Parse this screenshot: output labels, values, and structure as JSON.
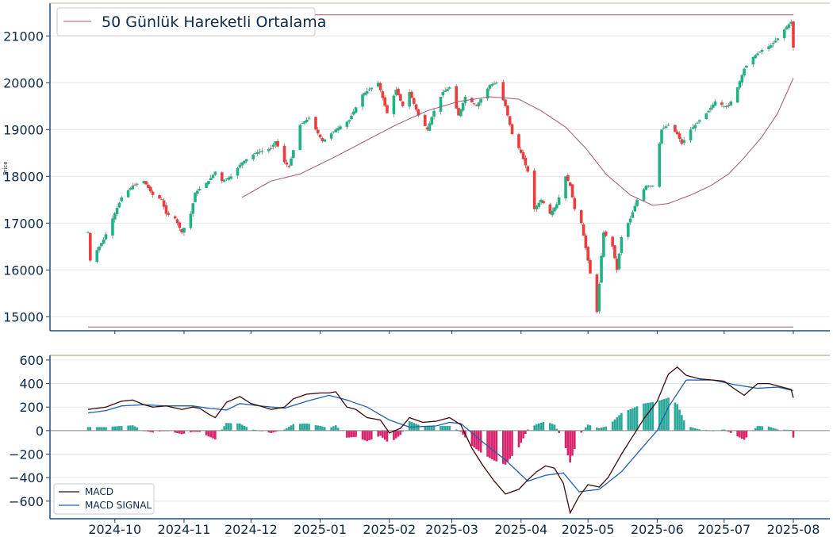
{
  "chart_data": [
    {
      "type": "candlestick",
      "ylabel": "Price",
      "ylim": [
        14700,
        21700
      ],
      "yticks": [
        15000,
        16000,
        17000,
        18000,
        19000,
        20000,
        21000
      ],
      "grid": true,
      "legend": {
        "placement": "top-left",
        "entries": [
          "50 Günlük Hareketli Ortalama"
        ]
      },
      "colors": {
        "up": "#1db385",
        "down": "#f03b3b",
        "ma": "#a3566f",
        "hline_top": "#a3566f",
        "hline_bottom": "#a3566f",
        "axis": "#1f4f8a",
        "grid": "#e6e6e6"
      },
      "horizontal_lines": [
        21450,
        14780
      ],
      "series": [
        {
          "name": "50 Günlük Hareketli Ortalama",
          "kind": "line",
          "key": "ma50"
        }
      ]
    },
    {
      "type": "macd",
      "ylim": [
        -750,
        640
      ],
      "yticks": [
        -600,
        -400,
        -200,
        0,
        200,
        400,
        600
      ],
      "grid": true,
      "legend": {
        "placement": "bottom-left",
        "entries": [
          "MACD",
          "MACD SIGNAL"
        ]
      },
      "colors": {
        "macd": "#3a0a0a",
        "signal": "#1f5fb0",
        "hist_pos": "#2aa89a",
        "hist_neg": "#d8226b",
        "zero": "#8a8a8a",
        "top_line": "#c9b99b"
      },
      "series": [
        {
          "name": "MACD",
          "kind": "line",
          "key": "macd"
        },
        {
          "name": "MACD SIGNAL",
          "kind": "line",
          "key": "signal"
        }
      ]
    }
  ],
  "x_axis": {
    "tick_labels": [
      "2024-10",
      "2024-11",
      "2024-12",
      "2025-01",
      "2025-02",
      "2025-03",
      "2025-04",
      "2025-05",
      "2025-06",
      "2025-07",
      "2025-08"
    ],
    "tick_dates": [
      "2024-10-01",
      "2024-11-01",
      "2024-12-01",
      "2025-01-01",
      "2025-02-01",
      "2025-03-01",
      "2025-04-01",
      "2025-05-01",
      "2025-06-01",
      "2025-07-01",
      "2025-08-01"
    ],
    "start": "2024-09-19",
    "end": "2025-08-01"
  },
  "anchors": {
    "close": [
      [
        "2024-09-19",
        16800
      ],
      [
        "2024-09-20",
        16200
      ],
      [
        "2024-09-24",
        16500
      ],
      [
        "2024-09-26",
        16650
      ],
      [
        "2024-09-30",
        17100
      ],
      [
        "2024-10-04",
        17550
      ],
      [
        "2024-10-09",
        17800
      ],
      [
        "2024-10-14",
        17900
      ],
      [
        "2024-10-18",
        17600
      ],
      [
        "2024-10-22",
        17500
      ],
      [
        "2024-10-24",
        17200
      ],
      [
        "2024-10-28",
        17100
      ],
      [
        "2024-10-31",
        16800
      ],
      [
        "2024-11-04",
        17200
      ],
      [
        "2024-11-06",
        17650
      ],
      [
        "2024-11-12",
        17900
      ],
      [
        "2024-11-15",
        18100
      ],
      [
        "2024-11-18",
        17900
      ],
      [
        "2024-11-22",
        18000
      ],
      [
        "2024-11-27",
        18300
      ],
      [
        "2024-12-03",
        18500
      ],
      [
        "2024-12-10",
        18600
      ],
      [
        "2024-12-12",
        18750
      ],
      [
        "2024-12-16",
        18300
      ],
      [
        "2024-12-18",
        18200
      ],
      [
        "2024-12-23",
        19100
      ],
      [
        "2024-12-27",
        19250
      ],
      [
        "2025-01-02",
        18750
      ],
      [
        "2025-01-08",
        19000
      ],
      [
        "2025-01-14",
        19200
      ],
      [
        "2025-01-20",
        19750
      ],
      [
        "2025-01-27",
        20000
      ],
      [
        "2025-01-31",
        19350
      ],
      [
        "2025-02-04",
        19850
      ],
      [
        "2025-02-07",
        19500
      ],
      [
        "2025-02-10",
        19800
      ],
      [
        "2025-02-14",
        19300
      ],
      [
        "2025-02-18",
        19000
      ],
      [
        "2025-02-21",
        19400
      ],
      [
        "2025-02-25",
        19800
      ],
      [
        "2025-02-28",
        19900
      ],
      [
        "2025-03-04",
        19300
      ],
      [
        "2025-03-07",
        19700
      ],
      [
        "2025-03-12",
        19500
      ],
      [
        "2025-03-14",
        19650
      ],
      [
        "2025-03-18",
        19950
      ],
      [
        "2025-03-21",
        20000
      ],
      [
        "2025-03-25",
        19500
      ],
      [
        "2025-03-28",
        18900
      ],
      [
        "2025-04-01",
        18500
      ],
      [
        "2025-04-04",
        18100
      ],
      [
        "2025-04-07",
        17300
      ],
      [
        "2025-04-10",
        17500
      ],
      [
        "2025-04-14",
        17200
      ],
      [
        "2025-04-17",
        17400
      ],
      [
        "2025-04-21",
        18000
      ],
      [
        "2025-04-23",
        17800
      ],
      [
        "2025-04-25",
        17300
      ],
      [
        "2025-04-28",
        17000
      ],
      [
        "2025-05-01",
        16200
      ],
      [
        "2025-05-05",
        15100
      ],
      [
        "2025-05-07",
        16300
      ],
      [
        "2025-05-08",
        16800
      ],
      [
        "2025-05-12",
        16500
      ],
      [
        "2025-05-14",
        16000
      ],
      [
        "2025-05-16",
        16700
      ],
      [
        "2025-05-20",
        17100
      ],
      [
        "2025-05-23",
        17500
      ],
      [
        "2025-05-27",
        17800
      ],
      [
        "2025-05-30",
        17800
      ],
      [
        "2025-06-03",
        19000
      ],
      [
        "2025-06-06",
        19100
      ],
      [
        "2025-06-10",
        18900
      ],
      [
        "2025-06-12",
        18700
      ],
      [
        "2025-06-16",
        19000
      ],
      [
        "2025-06-20",
        19200
      ],
      [
        "2025-06-24",
        19400
      ],
      [
        "2025-06-27",
        19600
      ],
      [
        "2025-07-01",
        19500
      ],
      [
        "2025-07-03",
        19500
      ],
      [
        "2025-07-07",
        19900
      ],
      [
        "2025-07-10",
        20300
      ],
      [
        "2025-07-14",
        20550
      ],
      [
        "2025-07-18",
        20700
      ],
      [
        "2025-07-22",
        20800
      ],
      [
        "2025-07-25",
        20950
      ],
      [
        "2025-07-29",
        21200
      ],
      [
        "2025-07-31",
        21300
      ],
      [
        "2025-08-01",
        20750
      ]
    ],
    "ma50": [
      [
        "2024-11-27",
        17550
      ],
      [
        "2024-12-10",
        17900
      ],
      [
        "2024-12-23",
        18050
      ],
      [
        "2025-01-07",
        18400
      ],
      [
        "2025-01-21",
        18750
      ],
      [
        "2025-02-04",
        19100
      ],
      [
        "2025-02-18",
        19400
      ],
      [
        "2025-03-04",
        19600
      ],
      [
        "2025-03-18",
        19700
      ],
      [
        "2025-03-31",
        19650
      ],
      [
        "2025-04-10",
        19400
      ],
      [
        "2025-04-21",
        19050
      ],
      [
        "2025-04-30",
        18600
      ],
      [
        "2025-05-09",
        18050
      ],
      [
        "2025-05-20",
        17600
      ],
      [
        "2025-05-30",
        17380
      ],
      [
        "2025-06-06",
        17420
      ],
      [
        "2025-06-16",
        17600
      ],
      [
        "2025-06-25",
        17800
      ],
      [
        "2025-07-03",
        18050
      ],
      [
        "2025-07-10",
        18400
      ],
      [
        "2025-07-18",
        18850
      ],
      [
        "2025-07-25",
        19350
      ],
      [
        "2025-08-01",
        20100
      ]
    ],
    "macd": [
      [
        "2024-09-19",
        180
      ],
      [
        "2024-09-27",
        200
      ],
      [
        "2024-10-04",
        250
      ],
      [
        "2024-10-09",
        260
      ],
      [
        "2024-10-14",
        220
      ],
      [
        "2024-10-18",
        200
      ],
      [
        "2024-10-24",
        210
      ],
      [
        "2024-10-31",
        180
      ],
      [
        "2024-11-05",
        200
      ],
      [
        "2024-11-08",
        190
      ],
      [
        "2024-11-12",
        140
      ],
      [
        "2024-11-15",
        110
      ],
      [
        "2024-11-20",
        240
      ],
      [
        "2024-11-26",
        290
      ],
      [
        "2024-12-01",
        230
      ],
      [
        "2024-12-05",
        210
      ],
      [
        "2024-12-10",
        180
      ],
      [
        "2024-12-16",
        200
      ],
      [
        "2024-12-20",
        270
      ],
      [
        "2024-12-26",
        310
      ],
      [
        "2025-01-01",
        320
      ],
      [
        "2025-01-05",
        320
      ],
      [
        "2025-01-08",
        330
      ],
      [
        "2025-01-13",
        200
      ],
      [
        "2025-01-17",
        180
      ],
      [
        "2025-01-22",
        110
      ],
      [
        "2025-01-28",
        90
      ],
      [
        "2025-02-01",
        -20
      ],
      [
        "2025-02-06",
        20
      ],
      [
        "2025-02-10",
        110
      ],
      [
        "2025-02-16",
        70
      ],
      [
        "2025-02-22",
        80
      ],
      [
        "2025-02-28",
        110
      ],
      [
        "2025-03-05",
        50
      ],
      [
        "2025-03-10",
        -150
      ],
      [
        "2025-03-15",
        -300
      ],
      [
        "2025-03-20",
        -430
      ],
      [
        "2025-03-25",
        -540
      ],
      [
        "2025-03-31",
        -500
      ],
      [
        "2025-04-04",
        -420
      ],
      [
        "2025-04-08",
        -350
      ],
      [
        "2025-04-12",
        -300
      ],
      [
        "2025-04-16",
        -320
      ],
      [
        "2025-04-20",
        -450
      ],
      [
        "2025-04-23",
        -700
      ],
      [
        "2025-04-27",
        -560
      ],
      [
        "2025-05-01",
        -460
      ],
      [
        "2025-05-06",
        -480
      ],
      [
        "2025-05-10",
        -400
      ],
      [
        "2025-05-16",
        -200
      ],
      [
        "2025-05-20",
        -80
      ],
      [
        "2025-05-26",
        100
      ],
      [
        "2025-06-01",
        250
      ],
      [
        "2025-06-06",
        480
      ],
      [
        "2025-06-10",
        540
      ],
      [
        "2025-06-14",
        470
      ],
      [
        "2025-06-20",
        440
      ],
      [
        "2025-06-26",
        430
      ],
      [
        "2025-07-01",
        420
      ],
      [
        "2025-07-06",
        350
      ],
      [
        "2025-07-10",
        300
      ],
      [
        "2025-07-16",
        400
      ],
      [
        "2025-07-21",
        400
      ],
      [
        "2025-07-25",
        380
      ],
      [
        "2025-07-29",
        360
      ],
      [
        "2025-07-31",
        350
      ],
      [
        "2025-08-01",
        280
      ]
    ],
    "signal": [
      [
        "2024-09-19",
        150
      ],
      [
        "2024-09-27",
        170
      ],
      [
        "2024-10-04",
        210
      ],
      [
        "2024-10-14",
        220
      ],
      [
        "2024-10-24",
        210
      ],
      [
        "2024-11-05",
        210
      ],
      [
        "2024-11-12",
        190
      ],
      [
        "2024-11-20",
        175
      ],
      [
        "2024-11-26",
        230
      ],
      [
        "2024-12-05",
        210
      ],
      [
        "2024-12-16",
        190
      ],
      [
        "2024-12-26",
        250
      ],
      [
        "2025-01-05",
        300
      ],
      [
        "2025-01-13",
        260
      ],
      [
        "2025-01-22",
        200
      ],
      [
        "2025-02-01",
        90
      ],
      [
        "2025-02-10",
        30
      ],
      [
        "2025-02-22",
        40
      ],
      [
        "2025-02-28",
        70
      ],
      [
        "2025-03-05",
        60
      ],
      [
        "2025-03-15",
        -100
      ],
      [
        "2025-03-25",
        -250
      ],
      [
        "2025-04-04",
        -430
      ],
      [
        "2025-04-12",
        -380
      ],
      [
        "2025-04-20",
        -360
      ],
      [
        "2025-04-27",
        -520
      ],
      [
        "2025-05-06",
        -500
      ],
      [
        "2025-05-16",
        -350
      ],
      [
        "2025-05-26",
        -130
      ],
      [
        "2025-06-01",
        0
      ],
      [
        "2025-06-06",
        200
      ],
      [
        "2025-06-14",
        430
      ],
      [
        "2025-06-26",
        430
      ],
      [
        "2025-07-06",
        390
      ],
      [
        "2025-07-16",
        360
      ],
      [
        "2025-07-25",
        370
      ],
      [
        "2025-08-01",
        340
      ]
    ]
  }
}
